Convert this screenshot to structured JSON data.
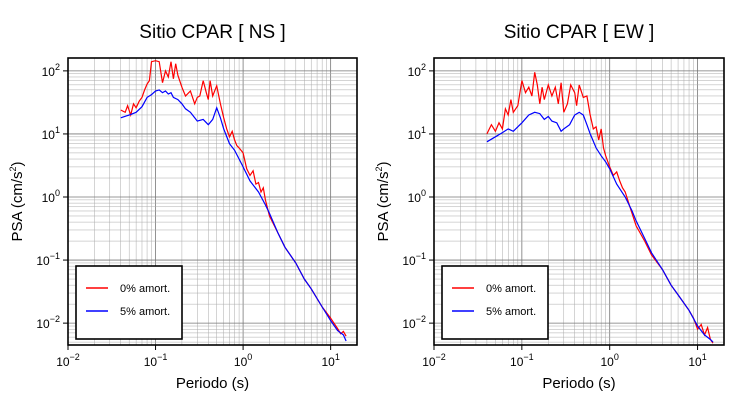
{
  "chart_data": [
    {
      "type": "line",
      "title": "Sitio CPAR [ NS ]",
      "xlabel": "Periodo (s)",
      "ylabel": {
        "main": "PSA (cm/s",
        "sup": "2",
        "close": ")"
      },
      "x_scale": "log",
      "y_scale": "log",
      "xlim": [
        0.01,
        20
      ],
      "ylim": [
        0.0045,
        160
      ],
      "grid": true,
      "legend_position": "bottom-left",
      "x_ticks": [
        {
          "base": "10",
          "exp": "−2"
        },
        {
          "base": "10",
          "exp": "−1"
        },
        {
          "base": "10",
          "exp": "0"
        },
        {
          "base": "10",
          "exp": "1"
        }
      ],
      "y_ticks": [
        {
          "base": "10",
          "exp": "−2"
        },
        {
          "base": "10",
          "exp": "−1"
        },
        {
          "base": "10",
          "exp": "0"
        },
        {
          "base": "10",
          "exp": "1"
        },
        {
          "base": "10",
          "exp": "2"
        }
      ],
      "series": [
        {
          "name": "0% amort.",
          "color": "#ff0000",
          "points": [
            [
              0.04,
              24
            ],
            [
              0.045,
              22
            ],
            [
              0.048,
              28
            ],
            [
              0.052,
              20
            ],
            [
              0.056,
              30
            ],
            [
              0.06,
              26
            ],
            [
              0.065,
              33
            ],
            [
              0.07,
              38
            ],
            [
              0.075,
              50
            ],
            [
              0.08,
              62
            ],
            [
              0.085,
              70
            ],
            [
              0.09,
              140
            ],
            [
              0.1,
              145
            ],
            [
              0.11,
              140
            ],
            [
              0.12,
              65
            ],
            [
              0.13,
              100
            ],
            [
              0.14,
              80
            ],
            [
              0.15,
              140
            ],
            [
              0.16,
              75
            ],
            [
              0.17,
              130
            ],
            [
              0.18,
              85
            ],
            [
              0.2,
              55
            ],
            [
              0.22,
              40
            ],
            [
              0.25,
              48
            ],
            [
              0.28,
              30
            ],
            [
              0.3,
              38
            ],
            [
              0.32,
              40
            ],
            [
              0.35,
              70
            ],
            [
              0.38,
              45
            ],
            [
              0.4,
              35
            ],
            [
              0.42,
              70
            ],
            [
              0.45,
              40
            ],
            [
              0.5,
              58
            ],
            [
              0.55,
              30
            ],
            [
              0.6,
              18
            ],
            [
              0.65,
              12
            ],
            [
              0.7,
              9
            ],
            [
              0.75,
              11
            ],
            [
              0.8,
              8
            ],
            [
              0.85,
              6.5
            ],
            [
              0.9,
              6
            ],
            [
              1.0,
              5
            ],
            [
              1.1,
              2.8
            ],
            [
              1.2,
              2.2
            ],
            [
              1.3,
              2.6
            ],
            [
              1.4,
              1.6
            ],
            [
              1.5,
              1.7
            ],
            [
              1.6,
              1.2
            ],
            [
              1.7,
              1.4
            ],
            [
              1.8,
              0.9
            ],
            [
              2.0,
              0.5
            ],
            [
              2.5,
              0.27
            ],
            [
              3.0,
              0.16
            ],
            [
              4.0,
              0.09
            ],
            [
              5.0,
              0.05
            ],
            [
              6.0,
              0.035
            ],
            [
              8.0,
              0.018
            ],
            [
              10.0,
              0.012
            ],
            [
              12.0,
              0.0082
            ],
            [
              13.0,
              0.0068
            ],
            [
              14.0,
              0.0074
            ],
            [
              15.0,
              0.0062
            ]
          ]
        },
        {
          "name": "5% amort.",
          "color": "#0000ff",
          "points": [
            [
              0.04,
              18
            ],
            [
              0.05,
              20
            ],
            [
              0.06,
              22
            ],
            [
              0.07,
              27
            ],
            [
              0.08,
              38
            ],
            [
              0.09,
              42
            ],
            [
              0.1,
              48
            ],
            [
              0.11,
              50
            ],
            [
              0.12,
              45
            ],
            [
              0.13,
              48
            ],
            [
              0.14,
              43
            ],
            [
              0.15,
              45
            ],
            [
              0.16,
              38
            ],
            [
              0.18,
              35
            ],
            [
              0.2,
              30
            ],
            [
              0.22,
              25
            ],
            [
              0.25,
              22
            ],
            [
              0.28,
              18
            ],
            [
              0.3,
              16
            ],
            [
              0.35,
              17
            ],
            [
              0.4,
              14
            ],
            [
              0.45,
              17
            ],
            [
              0.5,
              26
            ],
            [
              0.55,
              18
            ],
            [
              0.6,
              12
            ],
            [
              0.7,
              7
            ],
            [
              0.8,
              5.5
            ],
            [
              0.9,
              4
            ],
            [
              1.0,
              3
            ],
            [
              1.2,
              1.8
            ],
            [
              1.5,
              1.2
            ],
            [
              1.8,
              0.75
            ],
            [
              2.0,
              0.55
            ],
            [
              2.5,
              0.27
            ],
            [
              3.0,
              0.16
            ],
            [
              4.0,
              0.09
            ],
            [
              5.0,
              0.05
            ],
            [
              6.0,
              0.035
            ],
            [
              8.0,
              0.018
            ],
            [
              10.0,
              0.011
            ],
            [
              12.0,
              0.0076
            ],
            [
              14.0,
              0.0065
            ],
            [
              15.0,
              0.0052
            ]
          ]
        }
      ]
    },
    {
      "type": "line",
      "title": "Sitio CPAR [ EW ]",
      "xlabel": "Periodo (s)",
      "ylabel": {
        "main": "PSA (cm/s",
        "sup": "2",
        "close": ")"
      },
      "x_scale": "log",
      "y_scale": "log",
      "xlim": [
        0.01,
        20
      ],
      "ylim": [
        0.0045,
        160
      ],
      "grid": true,
      "legend_position": "bottom-left",
      "x_ticks": [
        {
          "base": "10",
          "exp": "−2"
        },
        {
          "base": "10",
          "exp": "−1"
        },
        {
          "base": "10",
          "exp": "0"
        },
        {
          "base": "10",
          "exp": "1"
        }
      ],
      "y_ticks": [
        {
          "base": "10",
          "exp": "−2"
        },
        {
          "base": "10",
          "exp": "−1"
        },
        {
          "base": "10",
          "exp": "0"
        },
        {
          "base": "10",
          "exp": "1"
        },
        {
          "base": "10",
          "exp": "2"
        }
      ],
      "series": [
        {
          "name": "0% amort.",
          "color": "#ff0000",
          "points": [
            [
              0.04,
              10
            ],
            [
              0.045,
              14
            ],
            [
              0.05,
              11
            ],
            [
              0.055,
              15
            ],
            [
              0.06,
              12
            ],
            [
              0.065,
              25
            ],
            [
              0.07,
              20
            ],
            [
              0.075,
              35
            ],
            [
              0.08,
              22
            ],
            [
              0.09,
              28
            ],
            [
              0.1,
              70
            ],
            [
              0.11,
              45
            ],
            [
              0.12,
              55
            ],
            [
              0.13,
              40
            ],
            [
              0.14,
              95
            ],
            [
              0.15,
              60
            ],
            [
              0.16,
              30
            ],
            [
              0.17,
              55
            ],
            [
              0.18,
              35
            ],
            [
              0.2,
              60
            ],
            [
              0.22,
              40
            ],
            [
              0.24,
              55
            ],
            [
              0.26,
              30
            ],
            [
              0.28,
              65
            ],
            [
              0.3,
              22
            ],
            [
              0.33,
              30
            ],
            [
              0.36,
              60
            ],
            [
              0.4,
              45
            ],
            [
              0.42,
              28
            ],
            [
              0.45,
              60
            ],
            [
              0.5,
              38
            ],
            [
              0.55,
              40
            ],
            [
              0.6,
              20
            ],
            [
              0.65,
              12
            ],
            [
              0.7,
              13
            ],
            [
              0.75,
              8
            ],
            [
              0.8,
              12
            ],
            [
              0.85,
              6
            ],
            [
              0.9,
              4.5
            ],
            [
              1.0,
              3
            ],
            [
              1.1,
              2.2
            ],
            [
              1.2,
              2.5
            ],
            [
              1.3,
              1.8
            ],
            [
              1.4,
              1.4
            ],
            [
              1.5,
              1.2
            ],
            [
              1.7,
              0.7
            ],
            [
              2.0,
              0.35
            ],
            [
              2.5,
              0.2
            ],
            [
              3.0,
              0.12
            ],
            [
              4.0,
              0.07
            ],
            [
              5.0,
              0.04
            ],
            [
              6.0,
              0.028
            ],
            [
              8.0,
              0.016
            ],
            [
              9.0,
              0.012
            ],
            [
              10.0,
              0.008
            ],
            [
              11.0,
              0.0095
            ],
            [
              12.0,
              0.0065
            ],
            [
              13.0,
              0.0085
            ],
            [
              14.0,
              0.0055
            ],
            [
              15.0,
              0.0048
            ]
          ]
        },
        {
          "name": "5% amort.",
          "color": "#0000ff",
          "points": [
            [
              0.04,
              7.5
            ],
            [
              0.05,
              9
            ],
            [
              0.06,
              10.5
            ],
            [
              0.07,
              12
            ],
            [
              0.08,
              11
            ],
            [
              0.09,
              13
            ],
            [
              0.1,
              15
            ],
            [
              0.12,
              20
            ],
            [
              0.14,
              22
            ],
            [
              0.16,
              21
            ],
            [
              0.18,
              17
            ],
            [
              0.2,
              19
            ],
            [
              0.22,
              16
            ],
            [
              0.25,
              15
            ],
            [
              0.28,
              11
            ],
            [
              0.3,
              12
            ],
            [
              0.35,
              14
            ],
            [
              0.4,
              20
            ],
            [
              0.45,
              22
            ],
            [
              0.5,
              20
            ],
            [
              0.55,
              14
            ],
            [
              0.6,
              10
            ],
            [
              0.7,
              6
            ],
            [
              0.8,
              4.5
            ],
            [
              0.9,
              3.6
            ],
            [
              1.0,
              2.8
            ],
            [
              1.2,
              1.6
            ],
            [
              1.5,
              1.0
            ],
            [
              1.8,
              0.6
            ],
            [
              2.0,
              0.42
            ],
            [
              2.5,
              0.22
            ],
            [
              3.0,
              0.13
            ],
            [
              4.0,
              0.07
            ],
            [
              5.0,
              0.04
            ],
            [
              6.0,
              0.028
            ],
            [
              8.0,
              0.016
            ],
            [
              10.0,
              0.009
            ],
            [
              12.0,
              0.0065
            ],
            [
              14.0,
              0.0055
            ],
            [
              15.0,
              0.005
            ]
          ]
        }
      ]
    }
  ]
}
